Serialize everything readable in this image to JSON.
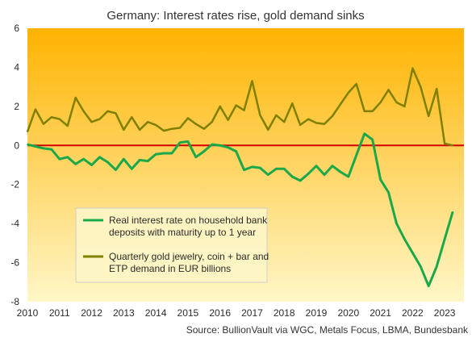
{
  "chart_data": {
    "type": "line",
    "title": "Germany:  Interest  rates rise, gold demand sinks",
    "source": "Source:  BullionVault via  WGC, Metals Focus, LBMA, Bundesbank",
    "xlim": [
      2010,
      2023.6
    ],
    "ylim": [
      -8,
      6
    ],
    "x_ticks": [
      "2010",
      "2011",
      "2012",
      "2013",
      "2014",
      "2015",
      "2016",
      "2017",
      "2018",
      "2019",
      "2020",
      "2021",
      "2022",
      "2023"
    ],
    "y_ticks": [
      "6",
      "4",
      "2",
      "0",
      "-2",
      "-4",
      "-6",
      "-8"
    ],
    "zero_line_color": "#d40000",
    "background_gradient": [
      "#ffb300",
      "#fff7c8"
    ],
    "legend_position": "lower-left",
    "series": [
      {
        "name": "Real interest rate on household bank deposits with maturity up to 1 year",
        "color": "#1aa84a",
        "x": [
          2010.0,
          2010.25,
          2010.5,
          2010.75,
          2011.0,
          2011.25,
          2011.5,
          2011.75,
          2012.0,
          2012.25,
          2012.5,
          2012.75,
          2013.0,
          2013.25,
          2013.5,
          2013.75,
          2014.0,
          2014.25,
          2014.5,
          2014.75,
          2015.0,
          2015.25,
          2015.5,
          2015.75,
          2016.0,
          2016.25,
          2016.5,
          2016.75,
          2017.0,
          2017.25,
          2017.5,
          2017.75,
          2018.0,
          2018.25,
          2018.5,
          2018.75,
          2019.0,
          2019.25,
          2019.5,
          2019.75,
          2020.0,
          2020.25,
          2020.5,
          2020.75,
          2021.0,
          2021.25,
          2021.5,
          2021.75,
          2022.0,
          2022.25,
          2022.5,
          2022.75,
          2023.0,
          2023.25
        ],
        "values": [
          0.05,
          -0.05,
          -0.15,
          -0.2,
          -0.7,
          -0.6,
          -0.95,
          -0.7,
          -1.0,
          -0.6,
          -0.85,
          -1.25,
          -0.7,
          -1.2,
          -0.75,
          -0.8,
          -0.45,
          -0.4,
          -0.4,
          0.15,
          0.2,
          -0.6,
          -0.3,
          0.05,
          0.0,
          -0.1,
          -0.3,
          -1.25,
          -1.1,
          -1.15,
          -1.5,
          -1.2,
          -1.2,
          -1.6,
          -1.8,
          -1.45,
          -1.05,
          -1.5,
          -1.05,
          -1.35,
          -1.6,
          -0.5,
          0.6,
          0.3,
          -1.75,
          -2.4,
          -4.0,
          -4.8,
          -5.5,
          -6.2,
          -7.2,
          -6.2,
          -4.8,
          -3.4
        ]
      },
      {
        "name": "Quarterly gold jewelry, coin + bar and ETP demand in EUR billions",
        "color": "#7f7f00",
        "x": [
          2010.0,
          2010.25,
          2010.5,
          2010.75,
          2011.0,
          2011.25,
          2011.5,
          2011.75,
          2012.0,
          2012.25,
          2012.5,
          2012.75,
          2013.0,
          2013.25,
          2013.5,
          2013.75,
          2014.0,
          2014.25,
          2014.5,
          2014.75,
          2015.0,
          2015.25,
          2015.5,
          2015.75,
          2016.0,
          2016.25,
          2016.5,
          2016.75,
          2017.0,
          2017.25,
          2017.5,
          2017.75,
          2018.0,
          2018.25,
          2018.5,
          2018.75,
          2019.0,
          2019.25,
          2019.5,
          2019.75,
          2020.0,
          2020.25,
          2020.5,
          2020.75,
          2021.0,
          2021.25,
          2021.5,
          2021.75,
          2022.0,
          2022.25,
          2022.5,
          2022.75,
          2023.0,
          2023.25
        ],
        "values": [
          0.7,
          1.85,
          1.1,
          1.45,
          1.35,
          1.0,
          2.45,
          1.75,
          1.2,
          1.35,
          1.75,
          1.65,
          0.8,
          1.45,
          0.8,
          1.2,
          1.05,
          0.75,
          0.85,
          0.9,
          1.4,
          1.1,
          0.85,
          1.2,
          2.0,
          1.3,
          2.05,
          1.8,
          3.3,
          1.55,
          0.8,
          1.55,
          1.2,
          2.15,
          1.05,
          1.35,
          1.15,
          1.1,
          1.5,
          2.1,
          2.7,
          3.15,
          1.75,
          1.75,
          2.2,
          2.85,
          2.2,
          2.0,
          3.95,
          3.0,
          1.5,
          2.9,
          0.1,
          0.0
        ]
      }
    ]
  }
}
